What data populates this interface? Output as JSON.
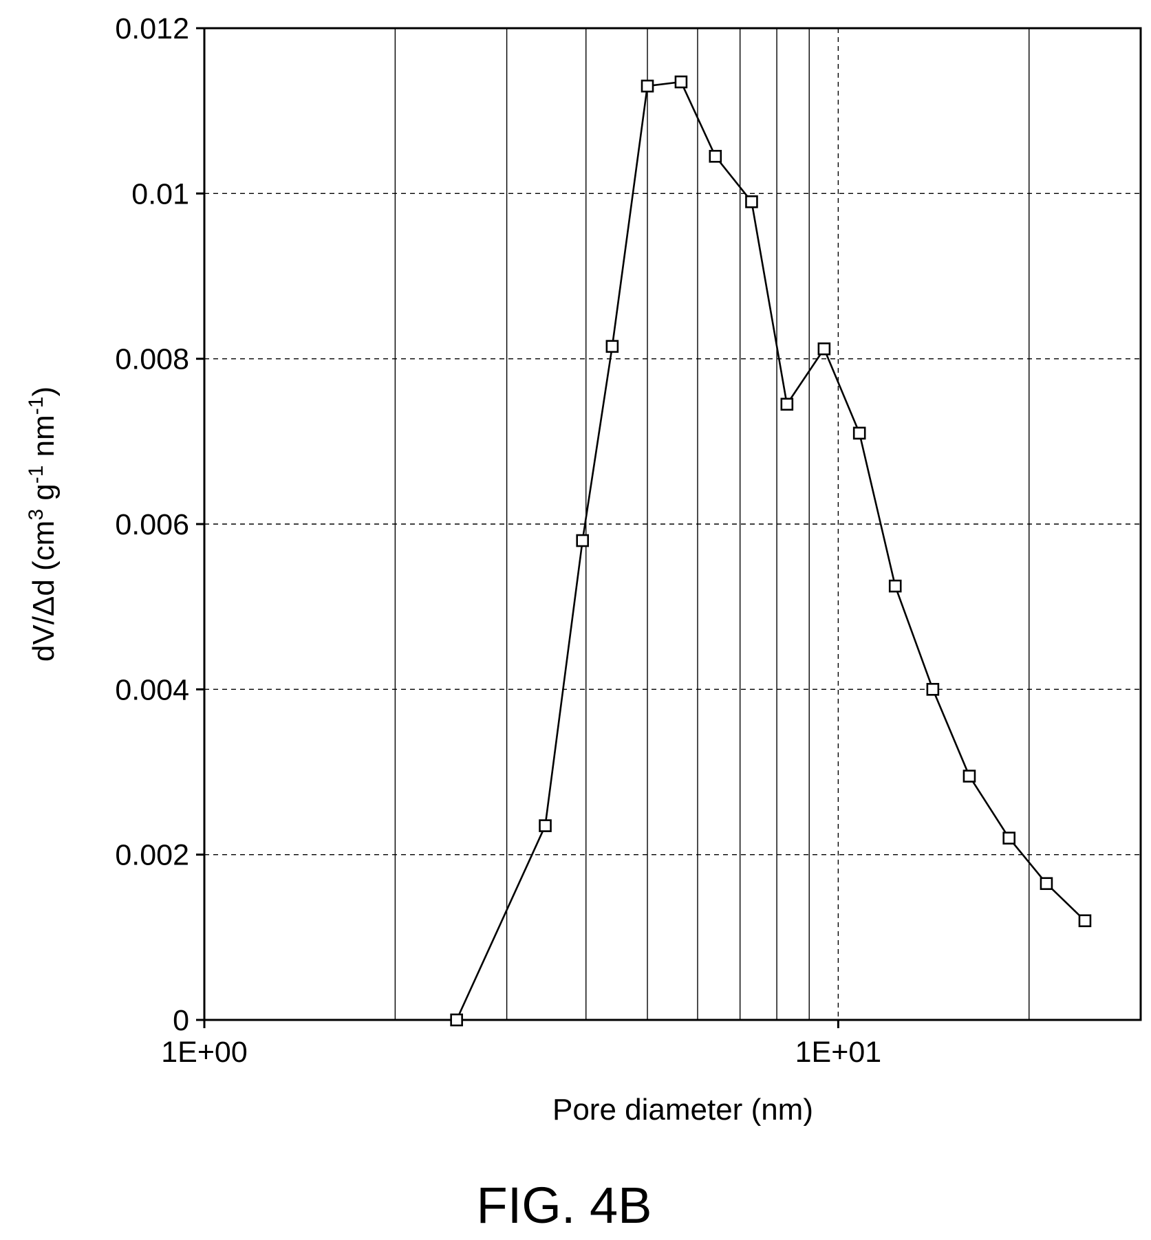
{
  "figure": {
    "caption": "FIG. 4B"
  },
  "chart_data": {
    "type": "line",
    "title": "",
    "xlabel": "Pore diameter (nm)",
    "ylabel_parts": [
      "dV/Δd (cm",
      "3",
      " g",
      "-1",
      " nm",
      "-1",
      ")"
    ],
    "x_scale": "log",
    "xlim": [
      1,
      30
    ],
    "ylim": [
      0,
      0.012
    ],
    "x_ticks": [
      {
        "value": 1,
        "label": "1E+00"
      },
      {
        "value": 10,
        "label": "1E+01"
      }
    ],
    "y_ticks": [
      {
        "value": 0,
        "label": "0"
      },
      {
        "value": 0.002,
        "label": "0.002"
      },
      {
        "value": 0.004,
        "label": "0.004"
      },
      {
        "value": 0.006,
        "label": "0.006"
      },
      {
        "value": 0.008,
        "label": "0.008"
      },
      {
        "value": 0.01,
        "label": "0.01"
      },
      {
        "value": 0.012,
        "label": "0.012"
      }
    ],
    "x_minor_grid": [
      2,
      3,
      4,
      5,
      6,
      7,
      8,
      9,
      20
    ],
    "x_major_grid_dashed": [
      10
    ],
    "y_grid_dashed": [
      0.002,
      0.004,
      0.006,
      0.008,
      0.01
    ],
    "grid": true,
    "legend": "none",
    "series": [
      {
        "marker": "open-square",
        "color": "#000000",
        "x": [
          2.5,
          3.45,
          3.95,
          4.4,
          5.0,
          5.65,
          6.4,
          7.3,
          8.3,
          9.5,
          10.8,
          12.3,
          14.1,
          16.1,
          18.6,
          21.3,
          24.5
        ],
        "y": [
          0.0,
          0.00235,
          0.0058,
          0.00815,
          0.0113,
          0.01135,
          0.01045,
          0.0099,
          0.00745,
          0.00812,
          0.0071,
          0.00525,
          0.004,
          0.00295,
          0.0022,
          0.00165,
          0.0012
        ]
      }
    ]
  }
}
